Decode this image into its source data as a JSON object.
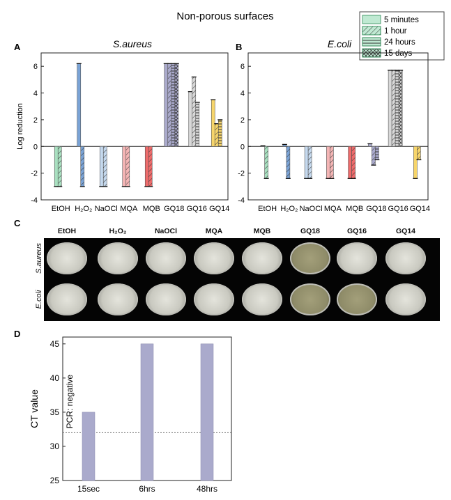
{
  "figure_title": "Non-porous surfaces",
  "legend": [
    {
      "label": "5 minutes",
      "pattern": "solid"
    },
    {
      "label": "1 hour",
      "pattern": "diag"
    },
    {
      "label": "24 hours",
      "pattern": "horiz"
    },
    {
      "label": "15 days",
      "pattern": "cross"
    }
  ],
  "panels": {
    "a": "A",
    "b": "B",
    "c": "C",
    "d": "D"
  },
  "panel_c": {
    "columns": [
      "EtOH",
      "H₂O₂",
      "NaOCl",
      "MQA",
      "MQB",
      "GQ18",
      "GQ16",
      "GQ14"
    ],
    "rows": [
      "S.aureus",
      "E.coli"
    ]
  },
  "chart_data": [
    {
      "type": "bar",
      "title": "S.aureus",
      "ylabel": "Log reduction",
      "ylim": [
        -4,
        7
      ],
      "yticks": [
        -4,
        -2,
        0,
        2,
        4,
        6
      ],
      "categories": [
        "EtOH",
        "H₂O₂",
        "NaOCl",
        "MQA",
        "MQB",
        "GQ18",
        "GQ16",
        "GQ14"
      ],
      "colors": [
        "#a8e0c0",
        "#7aa3d6",
        "#c5d9ee",
        "#f5b5b5",
        "#ee6b6b",
        "#aaaacc",
        "#d8d8d8",
        "#f7d56a"
      ],
      "series": [
        {
          "name": "5 minutes",
          "values": [
            -3,
            6.2,
            -3,
            -3,
            -3,
            6.2,
            4.1,
            3.5
          ]
        },
        {
          "name": "1 hour",
          "values": [
            -3,
            -3,
            -3,
            -3,
            -3,
            6.2,
            5.2,
            1.7
          ]
        },
        {
          "name": "24 hours",
          "values": [
            null,
            null,
            null,
            null,
            null,
            6.2,
            3.3,
            2.0
          ]
        },
        {
          "name": "15 days",
          "values": [
            null,
            null,
            null,
            null,
            null,
            6.2,
            null,
            null
          ]
        }
      ]
    },
    {
      "type": "bar",
      "title": "E.coli",
      "ylim": [
        -4,
        7
      ],
      "yticks": [
        -4,
        -2,
        0,
        2,
        4,
        6
      ],
      "categories": [
        "EtOH",
        "H₂O₂",
        "NaOCl",
        "MQA",
        "MQB",
        "GQ18",
        "GQ16",
        "GQ14"
      ],
      "colors": [
        "#a8e0c0",
        "#7aa3d6",
        "#c5d9ee",
        "#f5b5b5",
        "#ee6b6b",
        "#aaaacc",
        "#d8d8d8",
        "#f7d56a"
      ],
      "series": [
        {
          "name": "5 minutes",
          "values": [
            0.05,
            0.15,
            -2.4,
            -2.4,
            -2.4,
            0.2,
            5.7,
            -2.4
          ]
        },
        {
          "name": "1 hour",
          "values": [
            -2.4,
            -2.4,
            -2.4,
            -2.4,
            -2.4,
            -1.4,
            5.7,
            -1.0
          ]
        },
        {
          "name": "24 hours",
          "values": [
            null,
            null,
            null,
            null,
            null,
            -1.0,
            5.7,
            null
          ]
        },
        {
          "name": "15 days",
          "values": [
            null,
            null,
            null,
            null,
            null,
            null,
            5.7,
            null
          ]
        }
      ]
    },
    {
      "type": "bar",
      "ylabel": "CT value",
      "categories": [
        "15sec",
        "6hrs",
        "48hrs"
      ],
      "values": [
        35,
        45,
        45
      ],
      "ylim": [
        25,
        46
      ],
      "yticks": [
        25,
        30,
        35,
        40,
        45
      ],
      "color": "#aaaacc",
      "threshold": 32,
      "annotation": "PCR: negative"
    }
  ]
}
